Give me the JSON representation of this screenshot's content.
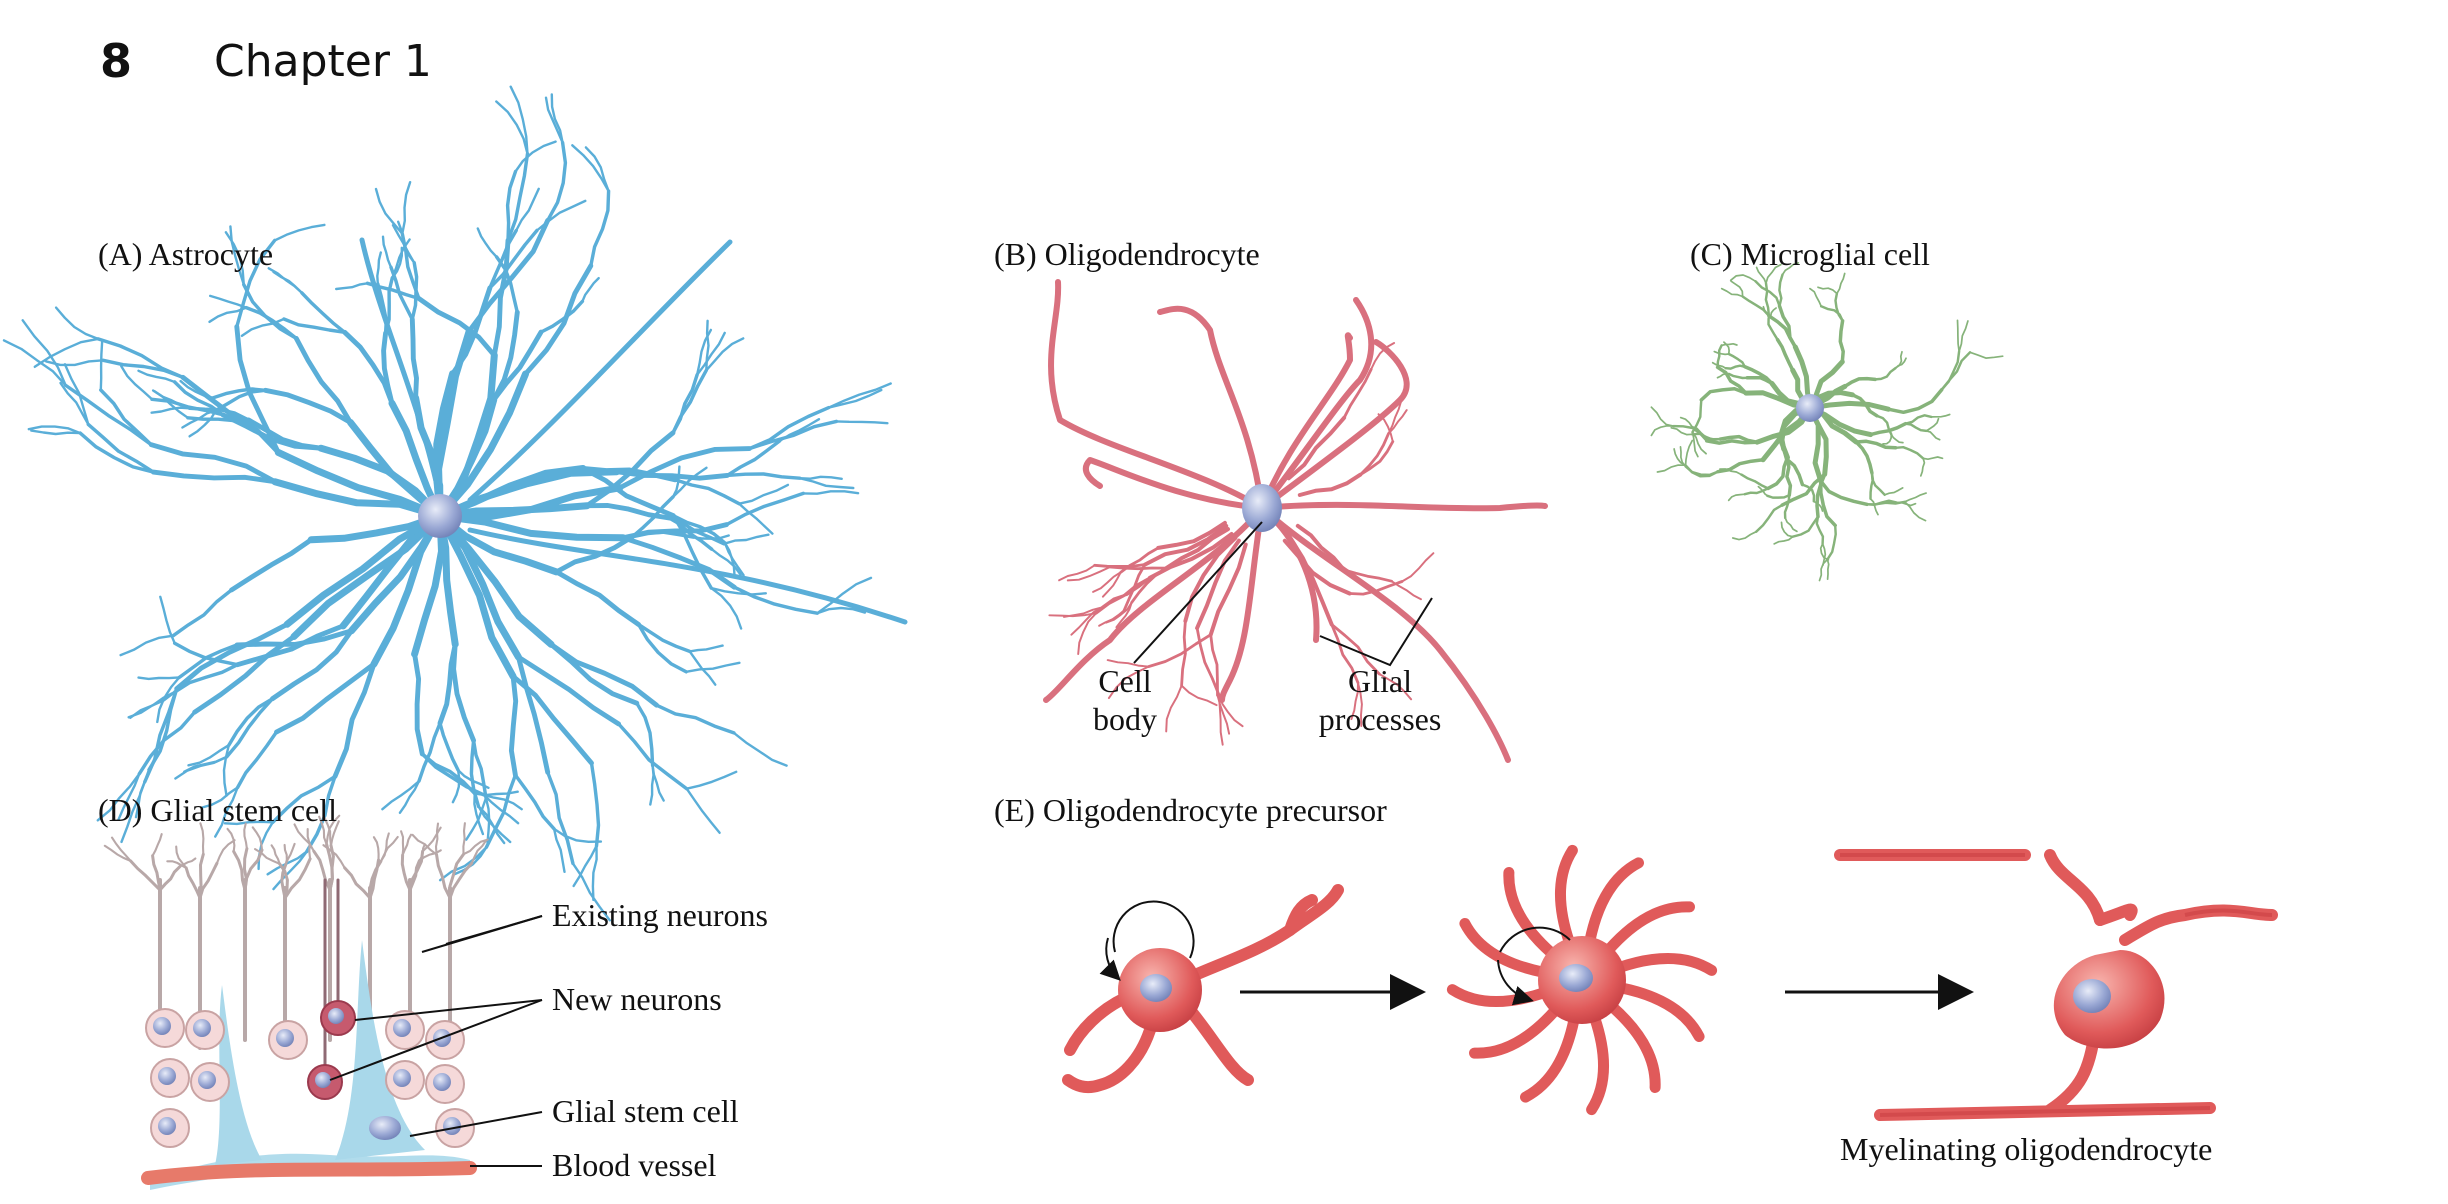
{
  "header": {
    "page_number": "8",
    "chapter": "Chapter 1"
  },
  "panels": {
    "a": {
      "label": "(A)  Astrocyte"
    },
    "b": {
      "label": "(B)  Oligodendrocyte",
      "cell_body_line1": "Cell",
      "cell_body_line2": "body",
      "glial_line1": "Glial",
      "glial_line2": "processes"
    },
    "c": {
      "label": "(C)  Microglial cell"
    },
    "d": {
      "label": "(D)  Glial stem cell",
      "existing_neurons": "Existing neurons",
      "new_neurons": "New neurons",
      "glial_stem_cell": "Glial stem cell",
      "blood_vessel": "Blood vessel"
    },
    "e": {
      "label": "(E)  Oligodendrocyte precursor",
      "myelinating": "Myelinating oligodendrocyte"
    }
  },
  "colors": {
    "astrocyte": "#5aaed8",
    "oligodendrocyte": "#d9707e",
    "microglia": "#86b37a",
    "precursor": "#e05a5a",
    "nucleus": "#9aa8d4",
    "stem_cell": "#a9d8ea",
    "vessel": "#e77a6a",
    "neuron_gray": "#b8a8a8"
  }
}
